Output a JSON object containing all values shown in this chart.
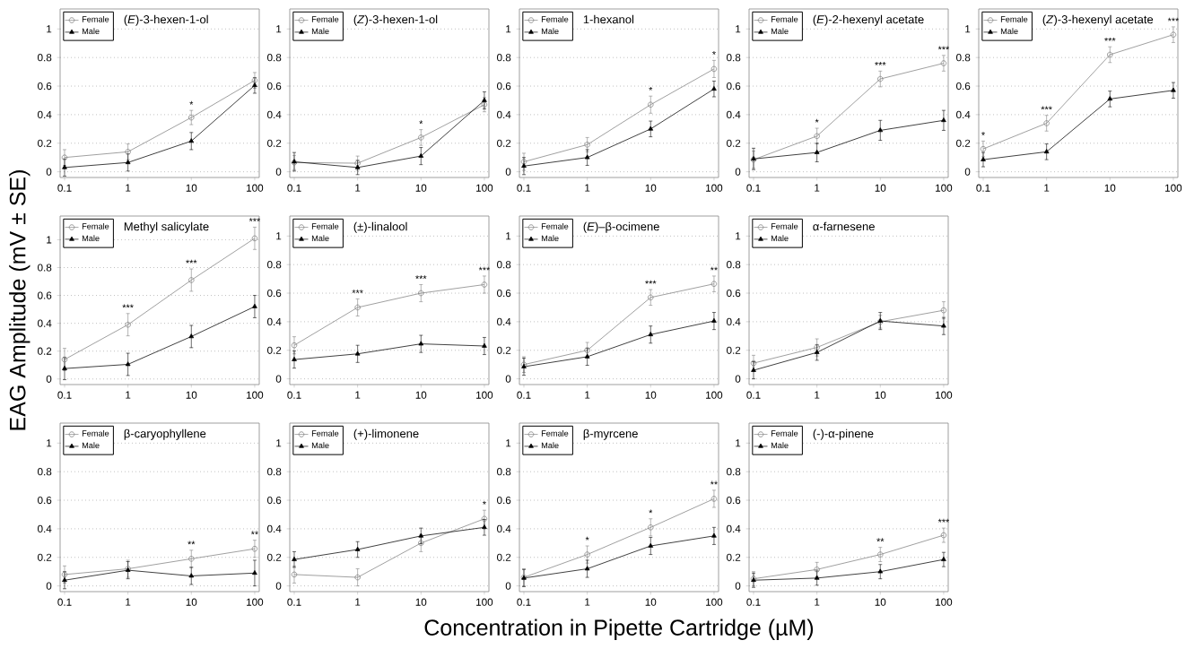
{
  "chart_data": [
    {
      "type": "line",
      "title": "(*E*)-3-hexen-1-ol",
      "x": [
        0.1,
        1,
        10,
        100
      ],
      "xlim": [
        0.085,
        118
      ],
      "ylim": [
        -0.04,
        1.14
      ],
      "xticks": [
        0.1,
        1,
        10,
        100
      ],
      "yticks": [
        0,
        0.2,
        0.4,
        0.6,
        0.8,
        1
      ],
      "log": "x",
      "grid": "y",
      "legend": "top left",
      "series": [
        {
          "name": "Female",
          "color": "#808080",
          "marker": "circle",
          "values": [
            0.1,
            0.14,
            0.38,
            0.64
          ],
          "errors": [
            0.055,
            0.055,
            0.05,
            0.055
          ]
        },
        {
          "name": "Male",
          "color": "#000000",
          "marker": "triangle",
          "values": [
            0.03,
            0.065,
            0.215,
            0.605
          ],
          "errors": [
            0.06,
            0.06,
            0.06,
            0.055
          ]
        }
      ],
      "annotations": [
        {
          "text": "*",
          "x": 10,
          "y": 0.38
        }
      ]
    },
    {
      "type": "line",
      "title": "(*Z*)-3-hexen-1-ol",
      "x": [
        0.1,
        1,
        10,
        100
      ],
      "xlim": [
        0.085,
        118
      ],
      "ylim": [
        -0.04,
        1.14
      ],
      "xticks": [
        0.1,
        1,
        10,
        100
      ],
      "yticks": [
        0,
        0.2,
        0.4,
        0.6,
        0.8,
        1
      ],
      "log": "x",
      "grid": "y",
      "legend": "top left",
      "series": [
        {
          "name": "Female",
          "color": "#808080",
          "marker": "circle",
          "values": [
            0.065,
            0.06,
            0.24,
            0.47
          ],
          "errors": [
            0.05,
            0.05,
            0.055,
            0.05
          ]
        },
        {
          "name": "Male",
          "color": "#000000",
          "marker": "triangle",
          "values": [
            0.07,
            0.03,
            0.11,
            0.5
          ],
          "errors": [
            0.065,
            0.05,
            0.06,
            0.06
          ]
        }
      ],
      "annotations": [
        {
          "text": "*",
          "x": 10,
          "y": 0.24
        }
      ]
    },
    {
      "type": "line",
      "title": "1-hexanol",
      "x": [
        0.1,
        1,
        10,
        100
      ],
      "xlim": [
        0.085,
        118
      ],
      "ylim": [
        -0.04,
        1.14
      ],
      "xticks": [
        0.1,
        1,
        10,
        100
      ],
      "yticks": [
        0,
        0.2,
        0.4,
        0.6,
        0.8,
        1
      ],
      "log": "x",
      "grid": "y",
      "legend": "top left",
      "series": [
        {
          "name": "Female",
          "color": "#808080",
          "marker": "circle",
          "values": [
            0.07,
            0.19,
            0.47,
            0.72
          ],
          "errors": [
            0.06,
            0.05,
            0.06,
            0.06
          ]
        },
        {
          "name": "Male",
          "color": "#000000",
          "marker": "triangle",
          "values": [
            0.04,
            0.1,
            0.3,
            0.58
          ],
          "errors": [
            0.06,
            0.055,
            0.055,
            0.055
          ]
        }
      ],
      "annotations": [
        {
          "text": "*",
          "x": 10,
          "y": 0.47
        },
        {
          "text": "*",
          "x": 100,
          "y": 0.72
        }
      ]
    },
    {
      "type": "line",
      "title": "(*E*)-2-hexenyl acetate",
      "x": [
        0.1,
        1,
        10,
        100
      ],
      "xlim": [
        0.085,
        118
      ],
      "ylim": [
        -0.04,
        1.14
      ],
      "xticks": [
        0.1,
        1,
        10,
        100
      ],
      "yticks": [
        0,
        0.2,
        0.4,
        0.6,
        0.8,
        1
      ],
      "log": "x",
      "grid": "y",
      "legend": "top left",
      "series": [
        {
          "name": "Female",
          "color": "#808080",
          "marker": "circle",
          "values": [
            0.085,
            0.25,
            0.65,
            0.76
          ],
          "errors": [
            0.06,
            0.055,
            0.055,
            0.055
          ]
        },
        {
          "name": "Male",
          "color": "#000000",
          "marker": "triangle",
          "values": [
            0.09,
            0.135,
            0.29,
            0.36
          ],
          "errors": [
            0.075,
            0.065,
            0.07,
            0.07
          ]
        }
      ],
      "annotations": [
        {
          "text": "*",
          "x": 1,
          "y": 0.25
        },
        {
          "text": "***",
          "x": 10,
          "y": 0.65
        },
        {
          "text": "***",
          "x": 100,
          "y": 0.76
        }
      ]
    },
    {
      "type": "line",
      "title": "(*Z*)-3-hexenyl acetate",
      "x": [
        0.1,
        1,
        10,
        100
      ],
      "xlim": [
        0.085,
        118
      ],
      "ylim": [
        -0.04,
        1.14
      ],
      "xticks": [
        0.1,
        1,
        10,
        100
      ],
      "yticks": [
        0,
        0.2,
        0.4,
        0.6,
        0.8,
        1
      ],
      "log": "x",
      "grid": "y",
      "legend": "top left",
      "series": [
        {
          "name": "Female",
          "color": "#808080",
          "marker": "circle",
          "values": [
            0.16,
            0.34,
            0.82,
            0.96
          ],
          "errors": [
            0.055,
            0.055,
            0.055,
            0.055
          ]
        },
        {
          "name": "Male",
          "color": "#000000",
          "marker": "triangle",
          "values": [
            0.085,
            0.14,
            0.51,
            0.57
          ],
          "errors": [
            0.05,
            0.055,
            0.055,
            0.055
          ]
        }
      ],
      "annotations": [
        {
          "text": "*",
          "x": 0.1,
          "y": 0.16
        },
        {
          "text": "***",
          "x": 1,
          "y": 0.34
        },
        {
          "text": "***",
          "x": 10,
          "y": 0.82
        },
        {
          "text": "***",
          "x": 100,
          "y": 0.96
        }
      ]
    },
    {
      "type": "line",
      "title": "Methyl salicylate",
      "ylabel": "EAG Amplitude (mV ± SE)",
      "x": [
        0.1,
        1,
        10,
        100
      ],
      "xlim": [
        0.085,
        118
      ],
      "ylim": [
        -0.04,
        1.17
      ],
      "xticks": [
        0.1,
        1,
        10,
        100
      ],
      "yticks": [
        0,
        0.2,
        0.4,
        0.6,
        0.8,
        1
      ],
      "log": "x",
      "grid": "y",
      "legend": "top left",
      "series": [
        {
          "name": "Female",
          "color": "#808080",
          "marker": "circle",
          "values": [
            0.14,
            0.39,
            0.71,
            1.01
          ],
          "errors": [
            0.08,
            0.08,
            0.08,
            0.08
          ]
        },
        {
          "name": "Male",
          "color": "#000000",
          "marker": "triangle",
          "values": [
            0.075,
            0.105,
            0.305,
            0.52
          ],
          "errors": [
            0.08,
            0.08,
            0.08,
            0.08
          ]
        }
      ],
      "annotations": [
        {
          "text": "***",
          "x": 1,
          "y": 0.39
        },
        {
          "text": "***",
          "x": 10,
          "y": 0.71
        },
        {
          "text": "***",
          "x": 100,
          "y": 1.01
        }
      ]
    },
    {
      "type": "line",
      "title": "(±)-linalool",
      "x": [
        0.1,
        1,
        10,
        100
      ],
      "xlim": [
        0.085,
        118
      ],
      "ylim": [
        -0.04,
        1.14
      ],
      "xticks": [
        0.1,
        1,
        10,
        100
      ],
      "yticks": [
        0,
        0.2,
        0.4,
        0.6,
        0.8,
        1
      ],
      "log": "x",
      "grid": "y",
      "legend": "top left",
      "series": [
        {
          "name": "Female",
          "color": "#808080",
          "marker": "circle",
          "values": [
            0.235,
            0.5,
            0.6,
            0.66
          ],
          "errors": [
            0.06,
            0.06,
            0.06,
            0.06
          ]
        },
        {
          "name": "Male",
          "color": "#000000",
          "marker": "triangle",
          "values": [
            0.135,
            0.175,
            0.245,
            0.23
          ],
          "errors": [
            0.06,
            0.06,
            0.06,
            0.06
          ]
        }
      ],
      "annotations": [
        {
          "text": "***",
          "x": 1,
          "y": 0.5
        },
        {
          "text": "***",
          "x": 10,
          "y": 0.6
        },
        {
          "text": "***",
          "x": 100,
          "y": 0.66
        }
      ]
    },
    {
      "type": "line",
      "title": "(*E*)–β-ocimene",
      "x": [
        0.1,
        1,
        10,
        100
      ],
      "xlim": [
        0.085,
        118
      ],
      "ylim": [
        -0.04,
        1.14
      ],
      "xticks": [
        0.1,
        1,
        10,
        100
      ],
      "yticks": [
        0,
        0.2,
        0.4,
        0.6,
        0.8,
        1
      ],
      "log": "x",
      "grid": "y",
      "legend": "top left",
      "series": [
        {
          "name": "Female",
          "color": "#808080",
          "marker": "circle",
          "values": [
            0.1,
            0.2,
            0.57,
            0.665
          ],
          "errors": [
            0.055,
            0.055,
            0.055,
            0.055
          ]
        },
        {
          "name": "Male",
          "color": "#000000",
          "marker": "triangle",
          "values": [
            0.085,
            0.155,
            0.31,
            0.405
          ],
          "errors": [
            0.06,
            0.06,
            0.06,
            0.06
          ]
        }
      ],
      "annotations": [
        {
          "text": "***",
          "x": 10,
          "y": 0.57
        },
        {
          "text": "**",
          "x": 100,
          "y": 0.665
        }
      ]
    },
    {
      "type": "line",
      "title": "α-farnesene",
      "x": [
        0.1,
        1,
        10,
        100
      ],
      "xlim": [
        0.085,
        118
      ],
      "ylim": [
        -0.04,
        1.14
      ],
      "xticks": [
        0.1,
        1,
        10,
        100
      ],
      "yticks": [
        0,
        0.2,
        0.4,
        0.6,
        0.8,
        1
      ],
      "log": "x",
      "grid": "y",
      "legend": "top left",
      "series": [
        {
          "name": "Female",
          "color": "#808080",
          "marker": "circle",
          "values": [
            0.11,
            0.22,
            0.4,
            0.48
          ],
          "errors": [
            0.055,
            0.06,
            0.045,
            0.06
          ]
        },
        {
          "name": "Male",
          "color": "#000000",
          "marker": "triangle",
          "values": [
            0.06,
            0.185,
            0.405,
            0.37
          ],
          "errors": [
            0.06,
            0.055,
            0.06,
            0.06
          ]
        }
      ]
    },
    {
      "type": "line",
      "title": "β-caryophyllene",
      "x": [
        0.1,
        1,
        10,
        100
      ],
      "xlim": [
        0.085,
        118
      ],
      "ylim": [
        -0.04,
        1.14
      ],
      "xticks": [
        0.1,
        1,
        10,
        100
      ],
      "yticks": [
        0,
        0.2,
        0.4,
        0.6,
        0.8,
        1
      ],
      "log": "x",
      "grid": "y",
      "legend": "top left",
      "series": [
        {
          "name": "Female",
          "color": "#808080",
          "marker": "circle",
          "values": [
            0.08,
            0.12,
            0.19,
            0.26
          ],
          "errors": [
            0.06,
            0.06,
            0.06,
            0.06
          ]
        },
        {
          "name": "Male",
          "color": "#000000",
          "marker": "triangle",
          "values": [
            0.04,
            0.11,
            0.07,
            0.09
          ],
          "errors": [
            0.06,
            0.06,
            0.06,
            0.09
          ]
        }
      ],
      "annotations": [
        {
          "text": "**",
          "x": 10,
          "y": 0.19
        },
        {
          "text": "**",
          "x": 100,
          "y": 0.26
        }
      ]
    },
    {
      "type": "line",
      "title": "(+)-limonene",
      "x": [
        0.1,
        1,
        10,
        100
      ],
      "xlim": [
        0.085,
        118
      ],
      "ylim": [
        -0.04,
        1.14
      ],
      "xticks": [
        0.1,
        1,
        10,
        100
      ],
      "yticks": [
        0,
        0.2,
        0.4,
        0.6,
        0.8,
        1
      ],
      "log": "x",
      "grid": "y",
      "legend": "top left",
      "series": [
        {
          "name": "Female",
          "color": "#808080",
          "marker": "circle",
          "values": [
            0.08,
            0.06,
            0.3,
            0.47
          ],
          "errors": [
            0.06,
            0.06,
            0.06,
            0.06
          ]
        },
        {
          "name": "Male",
          "color": "#000000",
          "marker": "triangle",
          "values": [
            0.185,
            0.255,
            0.35,
            0.41
          ],
          "errors": [
            0.055,
            0.055,
            0.055,
            0.055
          ]
        }
      ],
      "annotations": [
        {
          "text": "*",
          "x": 100,
          "y": 0.47
        }
      ]
    },
    {
      "type": "line",
      "title": "β-myrcene",
      "xlabel": "Concentration in Pipette Cartridge (µM)",
      "x": [
        0.1,
        1,
        10,
        100
      ],
      "xlim": [
        0.085,
        118
      ],
      "ylim": [
        -0.04,
        1.14
      ],
      "xticks": [
        0.1,
        1,
        10,
        100
      ],
      "yticks": [
        0,
        0.2,
        0.4,
        0.6,
        0.8,
        1
      ],
      "log": "x",
      "grid": "y",
      "legend": "top left",
      "series": [
        {
          "name": "Female",
          "color": "#808080",
          "marker": "circle",
          "values": [
            0.06,
            0.22,
            0.41,
            0.61
          ],
          "errors": [
            0.06,
            0.06,
            0.06,
            0.06
          ]
        },
        {
          "name": "Male",
          "color": "#000000",
          "marker": "triangle",
          "values": [
            0.055,
            0.12,
            0.28,
            0.35
          ],
          "errors": [
            0.06,
            0.06,
            0.06,
            0.06
          ]
        }
      ],
      "annotations": [
        {
          "text": "*",
          "x": 1,
          "y": 0.22
        },
        {
          "text": "*",
          "x": 10,
          "y": 0.41
        },
        {
          "text": "**",
          "x": 100,
          "y": 0.61
        }
      ]
    },
    {
      "type": "line",
      "title": "(-)-α-pinene",
      "x": [
        0.1,
        1,
        10,
        100
      ],
      "xlim": [
        0.085,
        118
      ],
      "ylim": [
        -0.04,
        1.14
      ],
      "xticks": [
        0.1,
        1,
        10,
        100
      ],
      "yticks": [
        0,
        0.2,
        0.4,
        0.6,
        0.8,
        1
      ],
      "log": "x",
      "grid": "y",
      "legend": "top left",
      "series": [
        {
          "name": "Female",
          "color": "#808080",
          "marker": "circle",
          "values": [
            0.05,
            0.115,
            0.22,
            0.355
          ],
          "errors": [
            0.05,
            0.05,
            0.05,
            0.05
          ]
        },
        {
          "name": "Male",
          "color": "#000000",
          "marker": "triangle",
          "values": [
            0.04,
            0.055,
            0.1,
            0.185
          ],
          "errors": [
            0.05,
            0.05,
            0.05,
            0.05
          ]
        }
      ],
      "annotations": [
        {
          "text": "**",
          "x": 10,
          "y": 0.22
        },
        {
          "text": "***",
          "x": 100,
          "y": 0.355
        }
      ]
    }
  ]
}
